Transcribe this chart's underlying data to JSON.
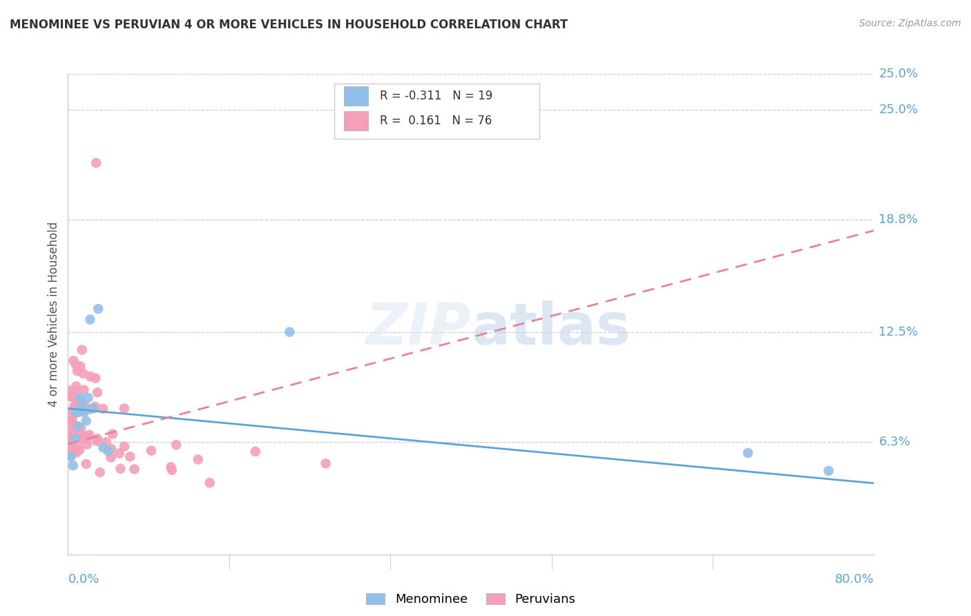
{
  "title": "MENOMINEE VS PERUVIAN 4 OR MORE VEHICLES IN HOUSEHOLD CORRELATION CHART",
  "source": "Source: ZipAtlas.com",
  "ylabel": "4 or more Vehicles in Household",
  "ytick_labels": [
    "25.0%",
    "18.8%",
    "12.5%",
    "6.3%"
  ],
  "ytick_values": [
    0.25,
    0.188,
    0.125,
    0.063
  ],
  "xlim": [
    0.0,
    0.8
  ],
  "ylim": [
    0.0,
    0.27
  ],
  "watermark": "ZIPatlas",
  "color_menominee": "#92c0e8",
  "color_peruvian": "#f4a0b8",
  "trendline_menominee_color": "#5ba3d9",
  "trendline_peruvian_color": "#e8829a",
  "menominee_x": [
    0.003,
    0.005,
    0.007,
    0.008,
    0.01,
    0.011,
    0.012,
    0.014,
    0.016,
    0.018,
    0.02,
    0.022,
    0.025,
    0.03,
    0.035,
    0.04,
    0.22,
    0.675,
    0.755
  ],
  "menominee_y": [
    0.055,
    0.05,
    0.065,
    0.08,
    0.072,
    0.08,
    0.088,
    0.083,
    0.08,
    0.075,
    0.088,
    0.132,
    0.082,
    0.138,
    0.06,
    0.058,
    0.125,
    0.057,
    0.047
  ],
  "peruvian_outlier_x": [
    0.028
  ],
  "peruvian_outlier_y": [
    0.22
  ],
  "trendline_menominee_x0": 0.0,
  "trendline_menominee_y0": 0.082,
  "trendline_menominee_x1": 0.8,
  "trendline_menominee_y1": 0.04,
  "trendline_peruvian_x0": 0.0,
  "trendline_peruvian_y0": 0.062,
  "trendline_peruvian_x1": 0.8,
  "trendline_peruvian_y1": 0.182
}
